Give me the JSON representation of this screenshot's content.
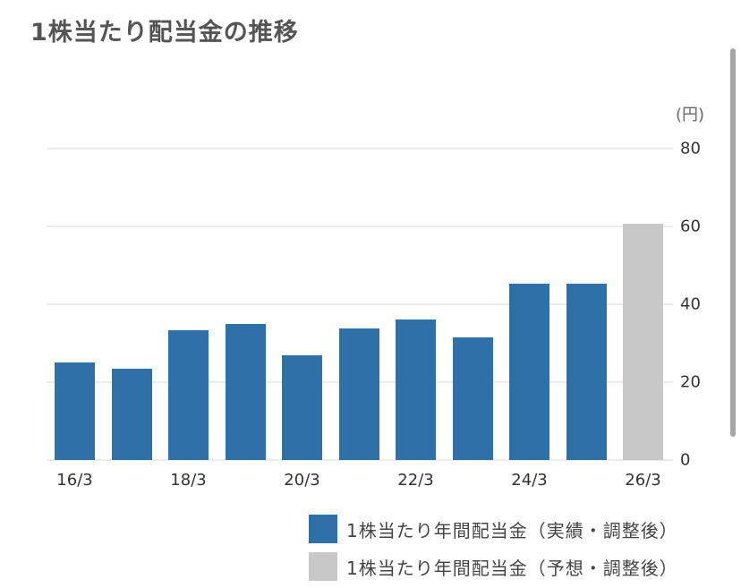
{
  "title": "1株当たり配当金の推移",
  "unit_label": "(円)",
  "colors": {
    "actual": "#3070a8",
    "forecast": "#c8c8c8",
    "grid": "#ececec"
  },
  "legend": [
    {
      "label": "1株当たり年間配当金（実績・調整後）",
      "color": "#3070a8"
    },
    {
      "label": "1株当たり年間配当金（予想・調整後）",
      "color": "#c8c8c8"
    }
  ],
  "y_ticks": [
    "80",
    "60",
    "40",
    "20",
    "0"
  ],
  "x_ticks": [
    "16/3",
    "18/3",
    "20/3",
    "22/3",
    "24/3",
    "26/3"
  ],
  "chart_data": {
    "type": "bar",
    "title": "1株当たり配当金の推移",
    "xlabel": "",
    "ylabel": "(円)",
    "ylim": [
      0,
      80
    ],
    "y_ticks": [
      0,
      20,
      40,
      60,
      80
    ],
    "grid": true,
    "legend_position": "bottom-right",
    "categories": [
      "16/3",
      "17/3",
      "18/3",
      "19/3",
      "20/3",
      "21/3",
      "22/3",
      "23/3",
      "24/3",
      "25/3",
      "26/3"
    ],
    "series": [
      {
        "name": "1株当たり年間配当金（実績・調整後）",
        "color": "#3070a8",
        "values": [
          25,
          23.4,
          33.3,
          35,
          27,
          33.8,
          36,
          31.5,
          45.3,
          45.3,
          null
        ]
      },
      {
        "name": "1株当たり年間配当金（予想・調整後）",
        "color": "#c8c8c8",
        "values": [
          null,
          null,
          null,
          null,
          null,
          null,
          null,
          null,
          null,
          null,
          60.7
        ]
      }
    ]
  }
}
